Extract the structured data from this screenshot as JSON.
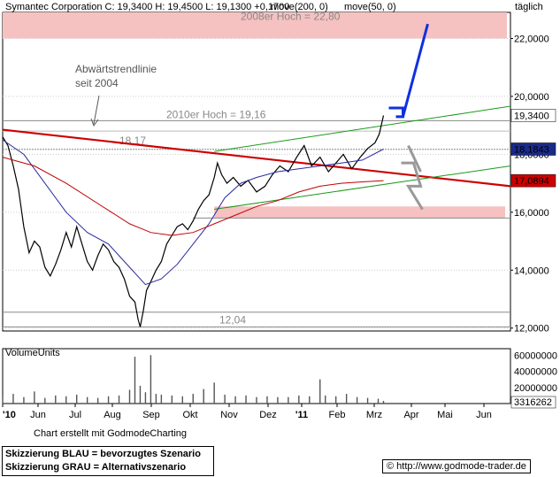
{
  "header": {
    "title": "Symantec Corporation C: 19,3400  H: 19,4500  L: 19,1300  +0,1700",
    "moving_averages": [
      "move(200, 0)",
      "move(50, 0)"
    ],
    "timeframe": "täglich"
  },
  "footer": {
    "credit": "Chart erstellt mit GodmodeCharting",
    "legend_blue": "Skizzierung BLAU = bevorzugtes Szenario",
    "legend_grey": "Skizzierung GRAU = Alternativszenario",
    "copyright": "©",
    "url": "http://www.godmode-trader.de"
  },
  "chart_data": [
    {
      "type": "line",
      "title": "Symantec Corporation",
      "ylim": [
        11.9,
        22.9
      ],
      "y_ticks": [
        "12,0000",
        "14,0000",
        "16,0000",
        "18,0000",
        "20,0000",
        "22,0000"
      ],
      "x_ticks": [
        "'10",
        "Jun",
        "Jul",
        "Aug",
        "Sep",
        "Okt",
        "Nov",
        "Dez",
        "'11",
        "Feb",
        "Mrz",
        "Apr",
        "Mai",
        "Jun"
      ],
      "series": [
        {
          "name": "Symantec Corporation",
          "color": "#000000",
          "values": [
            [
              0,
              18.6
            ],
            [
              5,
              18.3
            ],
            [
              10,
              17.6
            ],
            [
              15,
              16.8
            ],
            [
              20,
              15.5
            ],
            [
              25,
              14.6
            ],
            [
              30,
              15.0
            ],
            [
              35,
              14.8
            ],
            [
              40,
              14.1
            ],
            [
              45,
              13.8
            ],
            [
              50,
              14.2
            ],
            [
              55,
              14.7
            ],
            [
              60,
              15.3
            ],
            [
              65,
              14.8
            ],
            [
              70,
              15.5
            ],
            [
              75,
              14.9
            ],
            [
              80,
              14.3
            ],
            [
              85,
              14.0
            ],
            [
              90,
              14.5
            ],
            [
              95,
              14.9
            ],
            [
              100,
              14.7
            ],
            [
              105,
              14.3
            ],
            [
              110,
              14.1
            ],
            [
              115,
              13.7
            ],
            [
              120,
              13.1
            ],
            [
              125,
              12.9
            ],
            [
              128,
              12.3
            ],
            [
              130,
              12.04
            ],
            [
              133,
              12.6
            ],
            [
              136,
              13.3
            ],
            [
              140,
              13.6
            ],
            [
              145,
              14.0
            ],
            [
              150,
              14.3
            ],
            [
              155,
              14.9
            ],
            [
              160,
              15.2
            ],
            [
              165,
              15.5
            ],
            [
              170,
              15.6
            ],
            [
              175,
              15.4
            ],
            [
              180,
              15.7
            ],
            [
              185,
              16.1
            ],
            [
              190,
              16.4
            ],
            [
              195,
              16.6
            ],
            [
              200,
              17.2
            ],
            [
              203,
              17.7
            ],
            [
              207,
              17.3
            ],
            [
              212,
              17.0
            ],
            [
              218,
              17.2
            ],
            [
              225,
              16.9
            ],
            [
              232,
              17.1
            ],
            [
              240,
              16.7
            ],
            [
              248,
              16.9
            ],
            [
              255,
              17.3
            ],
            [
              262,
              17.6
            ],
            [
              270,
              17.4
            ],
            [
              278,
              17.9
            ],
            [
              285,
              18.3
            ],
            [
              292,
              17.6
            ],
            [
              300,
              17.9
            ],
            [
              308,
              17.4
            ],
            [
              315,
              17.7
            ],
            [
              322,
              18.0
            ],
            [
              330,
              17.5
            ],
            [
              338,
              17.9
            ],
            [
              345,
              18.2
            ],
            [
              352,
              18.4
            ],
            [
              356,
              18.7
            ],
            [
              360,
              19.34
            ]
          ]
        },
        {
          "name": "move(50, 0)",
          "color": "#2a2aa0",
          "values": [
            [
              0,
              18.5
            ],
            [
              20,
              18.0
            ],
            [
              40,
              17.0
            ],
            [
              60,
              16.0
            ],
            [
              80,
              15.3
            ],
            [
              100,
              14.9
            ],
            [
              120,
              14.1
            ],
            [
              135,
              13.5
            ],
            [
              150,
              13.7
            ],
            [
              165,
              14.2
            ],
            [
              180,
              14.9
            ],
            [
              195,
              15.6
            ],
            [
              210,
              16.5
            ],
            [
              225,
              17.0
            ],
            [
              240,
              17.2
            ],
            [
              260,
              17.4
            ],
            [
              280,
              17.5
            ],
            [
              300,
              17.6
            ],
            [
              320,
              17.7
            ],
            [
              340,
              17.8
            ],
            [
              360,
              18.18
            ]
          ]
        },
        {
          "name": "move(200, 0)",
          "color": "#c00000",
          "values": [
            [
              0,
              17.9
            ],
            [
              30,
              17.6
            ],
            [
              60,
              17.0
            ],
            [
              90,
              16.3
            ],
            [
              120,
              15.6
            ],
            [
              140,
              15.3
            ],
            [
              160,
              15.2
            ],
            [
              180,
              15.3
            ],
            [
              200,
              15.6
            ],
            [
              220,
              15.9
            ],
            [
              240,
              16.2
            ],
            [
              260,
              16.4
            ],
            [
              280,
              16.7
            ],
            [
              300,
              16.9
            ],
            [
              320,
              17.0
            ],
            [
              340,
              17.05
            ],
            [
              360,
              17.09
            ]
          ]
        }
      ],
      "annotations": [
        {
          "text": "2008er Hoch  =  22,80",
          "value": 22.8,
          "style": "red band"
        },
        {
          "text": "2010er Hoch = 19,16",
          "value": 19.16
        },
        {
          "text": "18,17",
          "value": 18.17
        },
        {
          "text": "12,04",
          "value": 12.04
        },
        {
          "text": "Abwärtstrendlinie",
          "value": 18.8
        },
        {
          "text": "seit 2004",
          "value": 18.8
        }
      ],
      "price_labels": [
        {
          "text": "19,3400",
          "value": 19.34,
          "bg": "#ffffff",
          "color": "#000000"
        },
        {
          "text": "18,1843",
          "value": 18.18,
          "bg": "#1a2a8a",
          "color": "#ffffff"
        },
        {
          "text": "17,0894",
          "value": 17.09,
          "bg": "#cc0000",
          "color": "#ffffff"
        }
      ],
      "support_zone": [
        15.8,
        16.2
      ]
    },
    {
      "type": "bar",
      "title": "VolumeUnits",
      "y_ticks": [
        "20000000",
        "40000000",
        "60000000"
      ],
      "ylim": [
        0,
        68000000
      ],
      "last_value_label": "3316262",
      "values": [
        [
          0,
          9000000
        ],
        [
          10,
          12000000
        ],
        [
          20,
          8000000
        ],
        [
          30,
          15000000
        ],
        [
          40,
          7000000
        ],
        [
          50,
          10000000
        ],
        [
          60,
          9000000
        ],
        [
          70,
          11000000
        ],
        [
          80,
          8000000
        ],
        [
          90,
          7000000
        ],
        [
          100,
          9000000
        ],
        [
          110,
          10000000
        ],
        [
          120,
          17000000
        ],
        [
          125,
          58000000
        ],
        [
          130,
          22000000
        ],
        [
          135,
          14000000
        ],
        [
          140,
          60000000
        ],
        [
          145,
          12000000
        ],
        [
          150,
          11000000
        ],
        [
          160,
          10000000
        ],
        [
          170,
          9000000
        ],
        [
          180,
          12000000
        ],
        [
          190,
          18000000
        ],
        [
          200,
          26000000
        ],
        [
          210,
          11000000
        ],
        [
          220,
          9000000
        ],
        [
          230,
          10000000
        ],
        [
          240,
          8000000
        ],
        [
          250,
          9000000
        ],
        [
          260,
          8000000
        ],
        [
          270,
          8000000
        ],
        [
          280,
          10000000
        ],
        [
          290,
          9000000
        ],
        [
          300,
          30000000
        ],
        [
          305,
          10000000
        ],
        [
          315,
          9000000
        ],
        [
          325,
          12000000
        ],
        [
          335,
          8000000
        ],
        [
          345,
          7000000
        ],
        [
          355,
          6000000
        ],
        [
          360,
          3316262
        ]
      ]
    }
  ]
}
